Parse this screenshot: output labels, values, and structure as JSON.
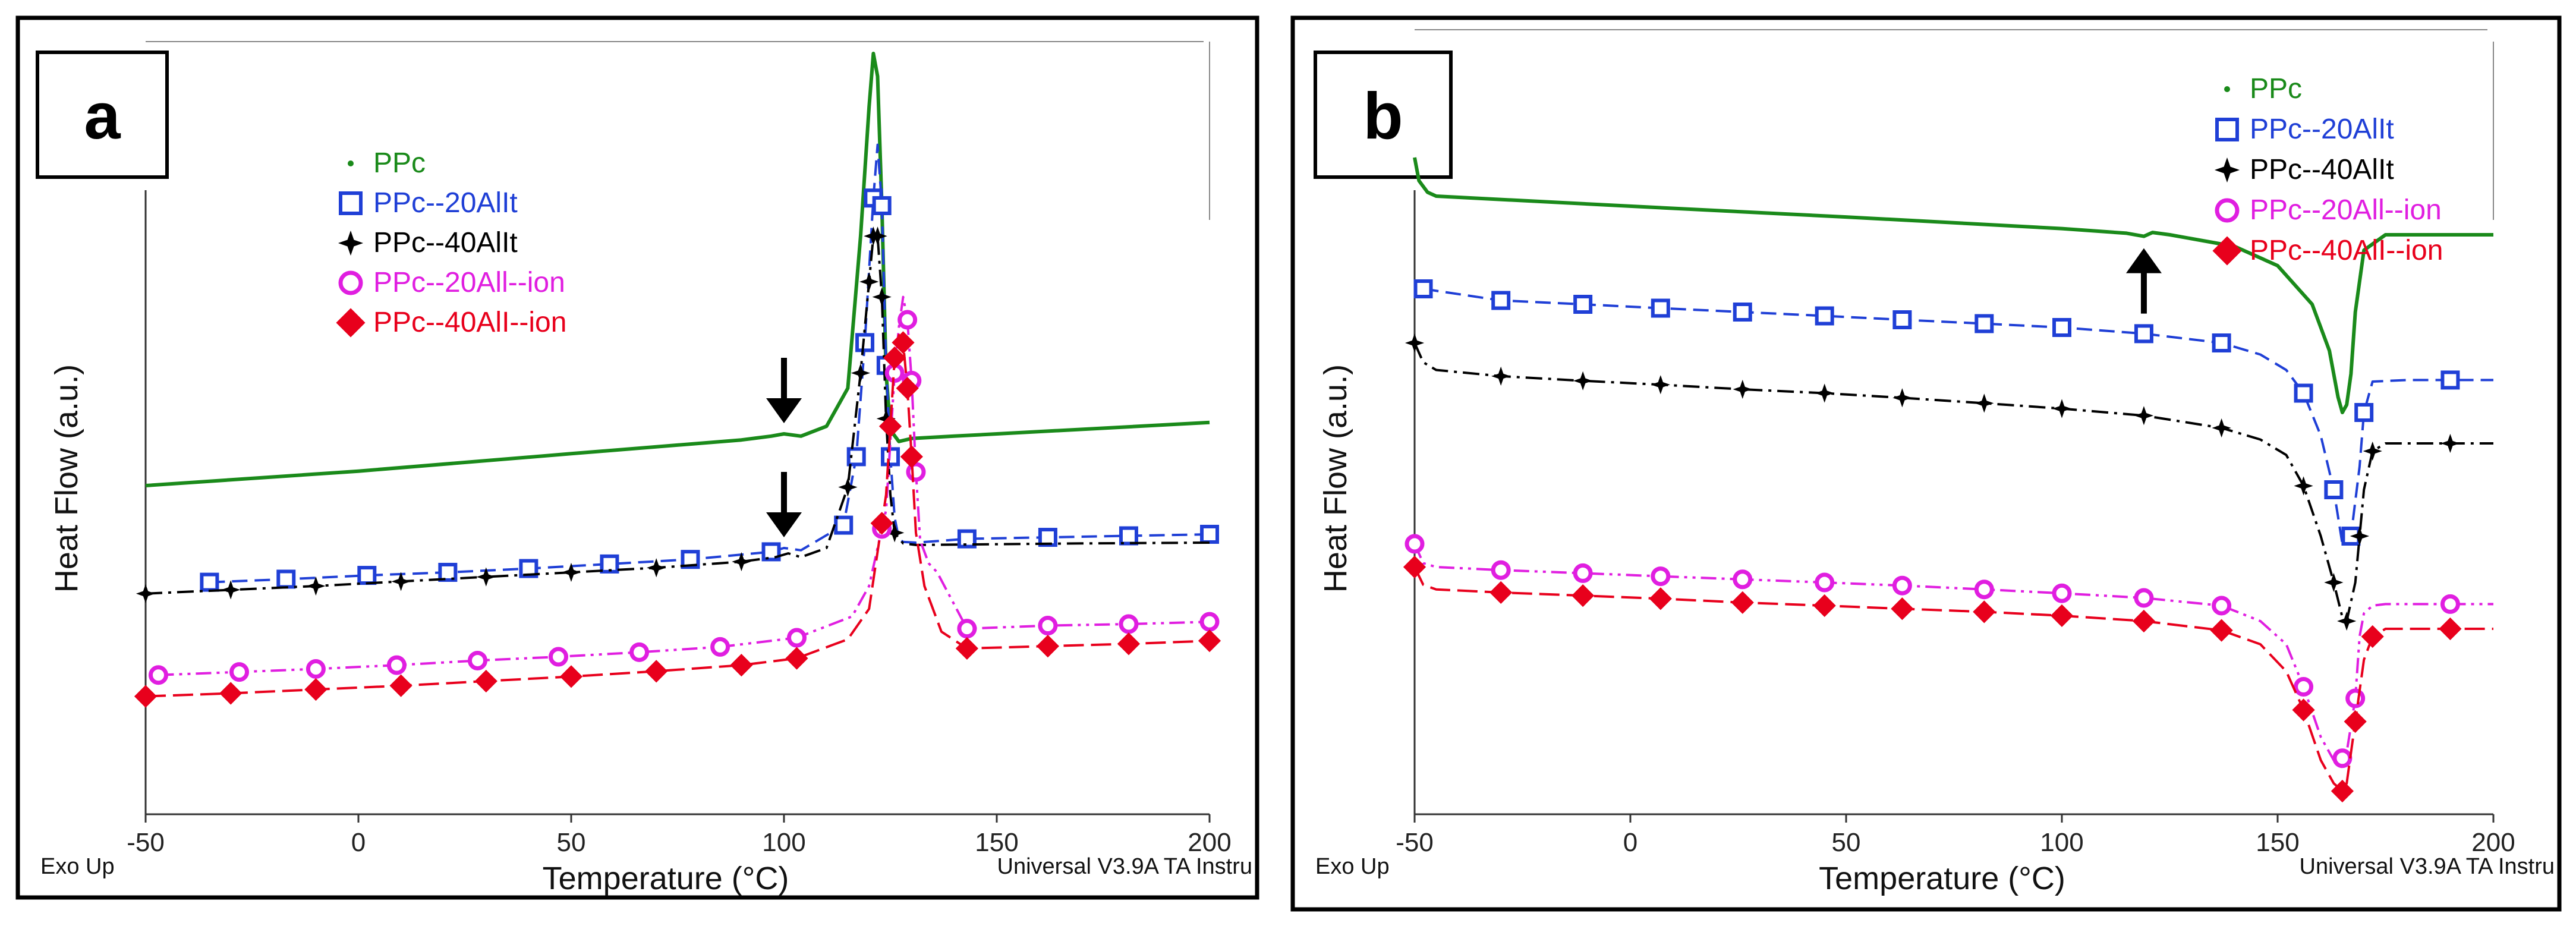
{
  "panels": [
    {
      "id": "a",
      "panel_label": "a",
      "footer_left": "Exo Up",
      "footer_right": "Universal V3.9A TA Instru",
      "chart_data": {
        "type": "line",
        "xlabel": "Temperature (°C)",
        "ylabel": "Heat Flow (a.u.)",
        "xlim": [
          -50,
          200
        ],
        "x_ticks": [
          -50,
          0,
          50,
          100,
          150,
          200
        ],
        "y_tick_labels": [],
        "grid": false,
        "legend_position": "upper-center",
        "annotations": [
          {
            "type": "arrow-down",
            "x": 100,
            "series": "PPc"
          },
          {
            "type": "arrow-down",
            "x": 100,
            "series": "PPc--20AlIt"
          }
        ],
        "series": [
          {
            "name": "PPc",
            "color": "#1a8a1a",
            "marker": "dot",
            "dash": "solid",
            "legend_marker": "·",
            "x": [
              -50,
              0,
              50,
              90,
              97,
              100,
              104,
              110,
              115,
              118,
              120,
              121,
              122,
              123,
              124,
              125,
              127,
              130,
              140,
              150,
              200
            ],
            "y": [
              0.432,
              0.451,
              0.474,
              0.492,
              0.497,
              0.5,
              0.497,
              0.51,
              0.56,
              0.76,
              0.93,
              1.0,
              0.97,
              0.8,
              0.58,
              0.505,
              0.49,
              0.494,
              0.497,
              0.5,
              0.515
            ]
          },
          {
            "name": "PPc--20AlIt",
            "color": "#1f3fd6",
            "marker": "square",
            "dash": "dashed",
            "legend_marker": "□",
            "x": [
              -35,
              -17,
              2,
              21,
              40,
              59,
              78,
              97,
              100,
              104,
              114,
              117,
              119,
              121,
              122,
              123,
              124,
              125,
              126,
              127,
              128,
              131,
              143,
              162,
              181,
              200
            ],
            "y": [
              0.305,
              0.309,
              0.314,
              0.318,
              0.323,
              0.329,
              0.335,
              0.345,
              0.35,
              0.347,
              0.38,
              0.47,
              0.62,
              0.81,
              0.88,
              0.8,
              0.59,
              0.47,
              0.39,
              0.362,
              0.358,
              0.357,
              0.362,
              0.364,
              0.366,
              0.368
            ],
            "marker_x": [
              -35,
              -17,
              2,
              21,
              40,
              59,
              78,
              97,
              114,
              117,
              119,
              121,
              123,
              124,
              125,
              143,
              162,
              181,
              200
            ]
          },
          {
            "name": "PPc--40AlIt",
            "color": "#000000",
            "marker": "star",
            "dash": "dashdot",
            "legend_marker": "✦",
            "x": [
              -50,
              -30,
              -10,
              10,
              30,
              50,
              70,
              90,
              98,
              101,
              104,
              110,
              115,
              118,
              120,
              121,
              122,
              123,
              124,
              125,
              126,
              128,
              131,
              150,
              170,
              200
            ],
            "y": [
              0.29,
              0.295,
              0.3,
              0.306,
              0.312,
              0.318,
              0.324,
              0.332,
              0.338,
              0.343,
              0.338,
              0.35,
              0.43,
              0.58,
              0.7,
              0.76,
              0.76,
              0.68,
              0.52,
              0.42,
              0.37,
              0.356,
              0.354,
              0.355,
              0.356,
              0.357
            ],
            "marker_x": [
              -50,
              -30,
              -10,
              10,
              30,
              50,
              70,
              90,
              115,
              118,
              120,
              121,
              122,
              123,
              124,
              126
            ]
          },
          {
            "name": "PPc--20All--ion",
            "color": "#e01ee0",
            "marker": "circle",
            "dash": "dashdotdot",
            "legend_marker": "○",
            "x": [
              -47,
              -28,
              -10,
              9,
              28,
              47,
              66,
              85,
              103,
              116,
              120,
              124,
              126,
              127,
              128,
              129,
              130,
              131,
              132,
              134,
              136,
              143,
              162,
              181,
              200
            ],
            "y": [
              0.183,
              0.187,
              0.191,
              0.196,
              0.202,
              0.207,
              0.213,
              0.22,
              0.232,
              0.26,
              0.3,
              0.4,
              0.58,
              0.64,
              0.68,
              0.65,
              0.57,
              0.45,
              0.36,
              0.33,
              0.318,
              0.244,
              0.248,
              0.25,
              0.253
            ],
            "marker_x": [
              -47,
              -28,
              -10,
              9,
              28,
              47,
              66,
              85,
              103,
              123,
              126,
              129,
              130,
              131,
              143,
              162,
              181,
              200
            ]
          },
          {
            "name": "PPc--40AlI--ion",
            "color": "#e8001c",
            "marker": "diamond",
            "dash": "longdash",
            "legend_marker": "◆",
            "x": [
              -50,
              -30,
              -10,
              10,
              30,
              50,
              70,
              90,
              103,
              115,
              120,
              124,
              126,
              127,
              128,
              129,
              130,
              131,
              133,
              137,
              143,
              162,
              181,
              200
            ],
            "y": [
              0.155,
              0.159,
              0.164,
              0.169,
              0.175,
              0.181,
              0.188,
              0.196,
              0.205,
              0.23,
              0.27,
              0.42,
              0.6,
              0.63,
              0.62,
              0.56,
              0.47,
              0.37,
              0.3,
              0.24,
              0.218,
              0.221,
              0.224,
              0.228
            ],
            "marker_x": [
              -50,
              -30,
              -10,
              10,
              30,
              50,
              70,
              90,
              103,
              123,
              125,
              126,
              128,
              129,
              130,
              143,
              162,
              181,
              200
            ]
          }
        ]
      }
    },
    {
      "id": "b",
      "panel_label": "b",
      "footer_left": "Exo Up",
      "footer_right": "Universal V3.9A TA Instru",
      "chart_data": {
        "type": "line",
        "xlabel": "Temperature (°C)",
        "ylabel": "Heat Flow (a.u.)",
        "xlim": [
          -50,
          200
        ],
        "x_ticks": [
          -50,
          0,
          50,
          100,
          150,
          200
        ],
        "y_tick_labels": [],
        "grid": false,
        "legend_position": "top-right",
        "annotations": [
          {
            "type": "arrow-up",
            "x": 119,
            "series": "PPc"
          }
        ],
        "series": [
          {
            "name": "PPc",
            "color": "#1a8a1a",
            "marker": "dot",
            "dash": "solid",
            "legend_marker": "·",
            "x": [
              -50,
              -49,
              -47,
              -45,
              0,
              50,
              100,
              115,
              119,
              121,
              125,
              140,
              150,
              158,
              162,
              164,
              165,
              166,
              167,
              168,
              170,
              175,
              200
            ],
            "y": [
              0.85,
              0.82,
              0.805,
              0.8,
              0.787,
              0.773,
              0.758,
              0.752,
              0.748,
              0.753,
              0.75,
              0.735,
              0.71,
              0.66,
              0.6,
              0.54,
              0.52,
              0.53,
              0.57,
              0.65,
              0.73,
              0.75,
              0.75
            ]
          },
          {
            "name": "PPc--20AlIt",
            "color": "#1f3fd6",
            "marker": "square",
            "dash": "dashed",
            "legend_marker": "□",
            "x": [
              -48,
              -30,
              -11,
              7,
              26,
              45,
              63,
              82,
              100,
              119,
              137,
              146,
              152,
              156,
              160,
              163,
              165,
              167,
              169,
              170,
              172,
              180,
              190,
              200
            ],
            "y": [
              0.68,
              0.665,
              0.66,
              0.655,
              0.65,
              0.645,
              0.64,
              0.635,
              0.63,
              0.622,
              0.61,
              0.595,
              0.575,
              0.545,
              0.49,
              0.42,
              0.35,
              0.36,
              0.45,
              0.52,
              0.56,
              0.562,
              0.562,
              0.562
            ],
            "marker_x": [
              -48,
              -30,
              -11,
              7,
              26,
              45,
              63,
              82,
              100,
              119,
              137,
              156,
              163,
              167,
              170,
              190
            ]
          },
          {
            "name": "PPc--40AlIt",
            "color": "#000000",
            "marker": "star",
            "dash": "dashdot",
            "legend_marker": "✦",
            "x": [
              -50,
              -48,
              -45,
              -30,
              -11,
              7,
              26,
              45,
              63,
              82,
              100,
              119,
              137,
              146,
              152,
              156,
              160,
              163,
              165,
              166,
              168,
              170,
              172,
              175,
              200
            ],
            "y": [
              0.61,
              0.585,
              0.575,
              0.567,
              0.561,
              0.556,
              0.55,
              0.545,
              0.539,
              0.532,
              0.525,
              0.516,
              0.5,
              0.485,
              0.465,
              0.425,
              0.36,
              0.3,
              0.255,
              0.25,
              0.3,
              0.42,
              0.47,
              0.48,
              0.48
            ],
            "marker_x": [
              -50,
              -30,
              -11,
              7,
              26,
              45,
              63,
              82,
              100,
              119,
              137,
              156,
              163,
              166,
              169,
              172,
              190
            ]
          },
          {
            "name": "PPc--20All--ion",
            "color": "#e01ee0",
            "marker": "circle",
            "dash": "dashdotdot",
            "legend_marker": "○",
            "x": [
              -50,
              -48,
              -45,
              -30,
              -11,
              7,
              26,
              45,
              63,
              82,
              100,
              119,
              137,
              146,
              152,
              156,
              160,
              163,
              164,
              166,
              168,
              169,
              170,
              172,
              175,
              200
            ],
            "y": [
              0.35,
              0.325,
              0.32,
              0.316,
              0.312,
              0.308,
              0.304,
              0.3,
              0.296,
              0.291,
              0.286,
              0.28,
              0.27,
              0.25,
              0.22,
              0.165,
              0.1,
              0.07,
              0.065,
              0.08,
              0.15,
              0.23,
              0.26,
              0.27,
              0.272,
              0.272
            ],
            "marker_x": [
              -50,
              -30,
              -11,
              7,
              26,
              45,
              63,
              82,
              100,
              119,
              137,
              156,
              165,
              168,
              190
            ]
          },
          {
            "name": "PPc--40AlI--ion",
            "color": "#e8001c",
            "marker": "diamond",
            "dash": "longdash",
            "legend_marker": "◆",
            "x": [
              -50,
              -48,
              -45,
              -30,
              -11,
              7,
              26,
              45,
              63,
              82,
              100,
              119,
              137,
              146,
              152,
              156,
              160,
              163,
              165,
              166,
              168,
              170,
              172,
              175,
              200
            ],
            "y": [
              0.32,
              0.297,
              0.291,
              0.287,
              0.283,
              0.279,
              0.274,
              0.27,
              0.266,
              0.262,
              0.257,
              0.25,
              0.238,
              0.22,
              0.185,
              0.135,
              0.07,
              0.04,
              0.03,
              0.04,
              0.12,
              0.2,
              0.23,
              0.24,
              0.24
            ],
            "marker_x": [
              -50,
              -30,
              -11,
              7,
              26,
              45,
              63,
              82,
              100,
              119,
              137,
              156,
              165,
              168,
              172,
              190
            ]
          }
        ]
      }
    }
  ]
}
